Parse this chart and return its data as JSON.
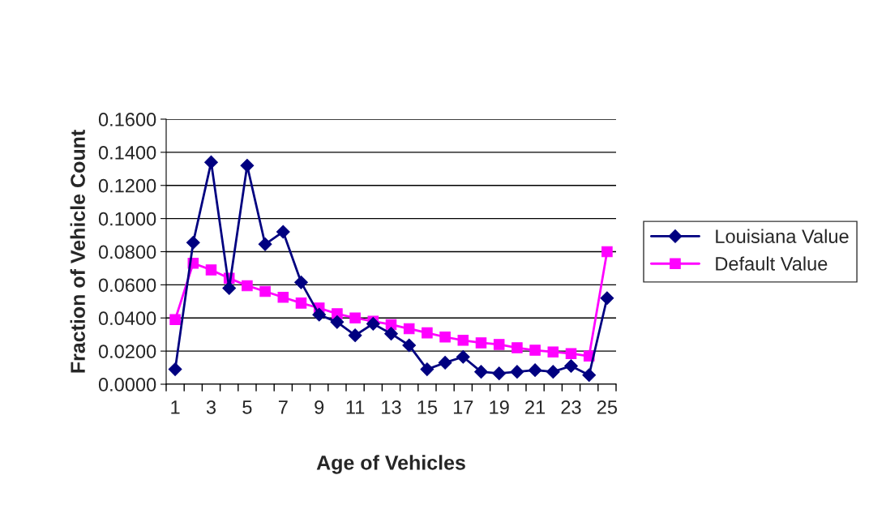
{
  "chart_data": {
    "type": "line",
    "xlabel": "Age of Vehicles",
    "ylabel": "Fraction of Vehicle Count",
    "categories": [
      "1",
      null,
      "3",
      null,
      "5",
      null,
      "7",
      null,
      "9",
      null,
      "11",
      null,
      "13",
      null,
      "15",
      null,
      "17",
      null,
      "19",
      null,
      "21",
      null,
      "23",
      null,
      "25"
    ],
    "series": [
      {
        "name": "Louisiana Value",
        "color": "#000080",
        "marker": "diamond",
        "values": [
          0.009,
          0.0855,
          0.134,
          0.058,
          0.132,
          0.0845,
          0.092,
          0.0615,
          0.042,
          0.0375,
          0.0295,
          0.0365,
          0.0305,
          0.0235,
          0.009,
          0.013,
          0.0165,
          0.0075,
          0.0065,
          0.0075,
          0.0085,
          0.0075,
          0.011,
          0.0055,
          0.052
        ]
      },
      {
        "name": "Default Value",
        "color": "#ff00ff",
        "marker": "square",
        "values": [
          0.039,
          0.073,
          0.069,
          0.064,
          0.0595,
          0.056,
          0.0525,
          0.049,
          0.046,
          0.0425,
          0.04,
          0.038,
          0.036,
          0.0335,
          0.031,
          0.0285,
          0.0265,
          0.025,
          0.024,
          0.022,
          0.0205,
          0.0195,
          0.0185,
          0.017,
          0.08
        ]
      }
    ],
    "ylim": [
      0,
      0.16
    ],
    "yticks": [
      {
        "value": 0,
        "label": "0.0000"
      },
      {
        "value": 0.02,
        "label": "0.0200"
      },
      {
        "value": 0.04,
        "label": "0.0400"
      },
      {
        "value": 0.06,
        "label": "0.0600"
      },
      {
        "value": 0.08,
        "label": "0.0800"
      },
      {
        "value": 0.1,
        "label": "0.1000"
      },
      {
        "value": 0.12,
        "label": "0.1200"
      },
      {
        "value": 0.14,
        "label": "0.1400"
      },
      {
        "value": 0.16,
        "label": "0.1600"
      }
    ],
    "grid": "y",
    "legend": "right"
  }
}
